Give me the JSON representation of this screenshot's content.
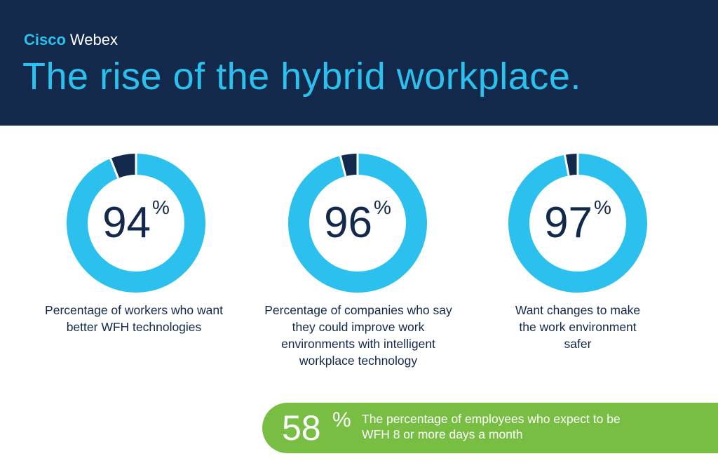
{
  "header": {
    "brand_bold": "Cisco",
    "brand_light": "Webex",
    "title": "The rise of the hybrid workplace."
  },
  "colors": {
    "navy": "#13294b",
    "cyan": "#2bc0ee",
    "green": "#78be43",
    "white": "#ffffff"
  },
  "chart_data": [
    {
      "type": "pie",
      "values": [
        94,
        6
      ],
      "value_label": "94",
      "unit": "%",
      "caption": "Percentage of workers who want better WFH technologies"
    },
    {
      "type": "pie",
      "values": [
        96,
        4
      ],
      "value_label": "96",
      "unit": "%",
      "caption": "Percentage of companies who say they could improve work environments with intelligent workplace technology"
    },
    {
      "type": "pie",
      "values": [
        97,
        3
      ],
      "value_label": "97",
      "unit": "%",
      "caption": "Want changes to make the work environment safer"
    }
  ],
  "callout": {
    "value": "58",
    "unit": "%",
    "text": "The percentage of employees who expect to be WFH 8 or more days a month"
  }
}
